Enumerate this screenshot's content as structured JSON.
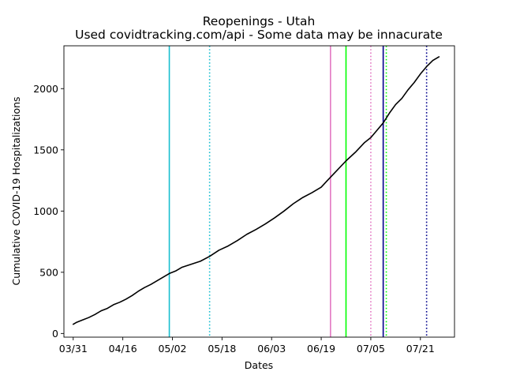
{
  "chart_data": {
    "type": "line",
    "title": "Reopenings - Utah",
    "subtitle": "Used covidtracking.com/api - Some data may be innacurate",
    "xlabel": "Dates",
    "ylabel": "Cumulative COVID-19 Hospitalizations",
    "grid": false,
    "xlim": [
      "2020-03-28",
      "2020-08-01"
    ],
    "ylim": [
      -30,
      2350
    ],
    "x_ticks": [
      {
        "date": "2020-03-31",
        "label": "03/31"
      },
      {
        "date": "2020-04-16",
        "label": "04/16"
      },
      {
        "date": "2020-05-02",
        "label": "05/02"
      },
      {
        "date": "2020-05-18",
        "label": "05/18"
      },
      {
        "date": "2020-06-03",
        "label": "06/03"
      },
      {
        "date": "2020-06-19",
        "label": "06/19"
      },
      {
        "date": "2020-07-05",
        "label": "07/05"
      },
      {
        "date": "2020-07-21",
        "label": "07/21"
      }
    ],
    "y_ticks": [
      0,
      500,
      1000,
      1500,
      2000
    ],
    "series": [
      {
        "color": "#000000",
        "x": [
          "2020-03-31",
          "2020-04-01",
          "2020-04-03",
          "2020-04-05",
          "2020-04-07",
          "2020-04-09",
          "2020-04-11",
          "2020-04-13",
          "2020-04-15",
          "2020-04-17",
          "2020-04-19",
          "2020-04-21",
          "2020-04-23",
          "2020-04-25",
          "2020-04-27",
          "2020-04-29",
          "2020-05-01",
          "2020-05-03",
          "2020-05-05",
          "2020-05-08",
          "2020-05-11",
          "2020-05-14",
          "2020-05-17",
          "2020-05-20",
          "2020-05-23",
          "2020-05-26",
          "2020-05-29",
          "2020-06-01",
          "2020-06-04",
          "2020-06-07",
          "2020-06-10",
          "2020-06-13",
          "2020-06-16",
          "2020-06-19",
          "2020-06-21",
          "2020-06-24",
          "2020-06-27",
          "2020-06-30",
          "2020-07-03",
          "2020-07-05",
          "2020-07-07",
          "2020-07-09",
          "2020-07-11",
          "2020-07-13",
          "2020-07-15",
          "2020-07-17",
          "2020-07-19",
          "2020-07-21",
          "2020-07-23",
          "2020-07-25",
          "2020-07-27"
        ],
        "y": [
          75,
          90,
          110,
          130,
          155,
          185,
          205,
          235,
          255,
          280,
          310,
          345,
          375,
          400,
          430,
          460,
          490,
          510,
          540,
          565,
          590,
          630,
          680,
          715,
          760,
          810,
          850,
          895,
          945,
          1000,
          1060,
          1110,
          1150,
          1195,
          1250,
          1330,
          1410,
          1480,
          1560,
          1600,
          1660,
          1720,
          1800,
          1870,
          1920,
          1990,
          2050,
          2120,
          2180,
          2230,
          2260
        ]
      }
    ],
    "vlines": [
      {
        "date": "2020-05-01",
        "color": "#17becf",
        "style": "solid"
      },
      {
        "date": "2020-05-14",
        "color": "#17becf",
        "style": "dotted"
      },
      {
        "date": "2020-06-22",
        "color": "#e377c2",
        "style": "solid"
      },
      {
        "date": "2020-06-27",
        "color": "#00ff00",
        "style": "solid"
      },
      {
        "date": "2020-07-05",
        "color": "#e377c2",
        "style": "dotted"
      },
      {
        "date": "2020-07-09",
        "color": "#00008b",
        "style": "solid"
      },
      {
        "date": "2020-07-10",
        "color": "#00ff00",
        "style": "dotted"
      },
      {
        "date": "2020-07-23",
        "color": "#00008b",
        "style": "dotted"
      }
    ]
  }
}
